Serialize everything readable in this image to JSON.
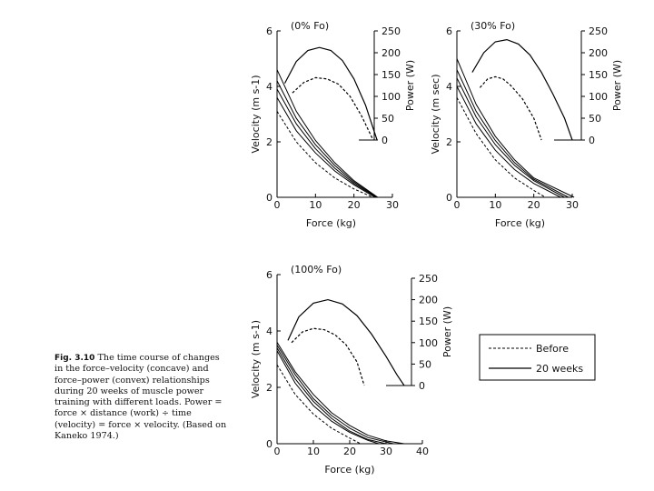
{
  "caption": {
    "label": "Fig. 3.10",
    "text": "The time course of changes in the force–velocity (concave) and force–power (convex) relationships during 20 weeks of muscle power training with different loads. Power = force × distance (work) ÷ time (velocity) = force × velocity. (Based on Kaneko 1974.)"
  },
  "legend": {
    "before": "Before",
    "after": "20 weeks"
  },
  "chart_data": [
    {
      "type": "line",
      "title": "(0% Fo)",
      "xlabel": "Force (kg)",
      "ylabel": "Velocity (m s-1)",
      "y2label": "Power (W)",
      "xlim": [
        0,
        30
      ],
      "xticks": [
        0,
        10,
        20,
        30
      ],
      "ylim": [
        0,
        6
      ],
      "yticks": [
        0,
        2,
        4,
        6
      ],
      "y2lim": [
        0,
        250
      ],
      "y2ticks": [
        0,
        50,
        100,
        150,
        200,
        250
      ],
      "velocity_series": [
        {
          "name": "Before",
          "dashed": true,
          "points": [
            [
              0,
              3.1
            ],
            [
              5,
              2.0
            ],
            [
              10,
              1.25
            ],
            [
              15,
              0.7
            ],
            [
              20,
              0.3
            ],
            [
              25,
              0.0
            ]
          ]
        },
        {
          "name": "Intermediate 1",
          "dashed": false,
          "points": [
            [
              0,
              3.6
            ],
            [
              5,
              2.4
            ],
            [
              10,
              1.6
            ],
            [
              15,
              0.95
            ],
            [
              20,
              0.45
            ],
            [
              25.5,
              0.0
            ]
          ]
        },
        {
          "name": "Intermediate 2",
          "dashed": false,
          "points": [
            [
              0,
              3.9
            ],
            [
              5,
              2.65
            ],
            [
              10,
              1.75
            ],
            [
              15,
              1.05
            ],
            [
              20,
              0.5
            ],
            [
              25.8,
              0.0
            ]
          ]
        },
        {
          "name": "Intermediate 3",
          "dashed": false,
          "points": [
            [
              0,
              4.2
            ],
            [
              5,
              2.85
            ],
            [
              10,
              1.9
            ],
            [
              15,
              1.15
            ],
            [
              20,
              0.55
            ],
            [
              26,
              0.0
            ]
          ]
        },
        {
          "name": "20 weeks",
          "dashed": false,
          "points": [
            [
              0,
              4.6
            ],
            [
              5,
              3.1
            ],
            [
              10,
              2.05
            ],
            [
              15,
              1.25
            ],
            [
              20,
              0.6
            ],
            [
              26.2,
              0.0
            ]
          ]
        }
      ],
      "power_series": [
        {
          "name": "Before",
          "dashed": true,
          "points": [
            [
              4,
              108
            ],
            [
              7,
              132
            ],
            [
              10,
              143
            ],
            [
              13,
              140
            ],
            [
              16,
              128
            ],
            [
              19,
              100
            ],
            [
              22,
              55
            ],
            [
              25,
              0
            ]
          ]
        },
        {
          "name": "20 weeks",
          "dashed": false,
          "points": [
            [
              2,
              130
            ],
            [
              5,
              180
            ],
            [
              8,
              205
            ],
            [
              11,
              212
            ],
            [
              14,
              205
            ],
            [
              17,
              182
            ],
            [
              20,
              140
            ],
            [
              23,
              80
            ],
            [
              26,
              0
            ]
          ]
        }
      ]
    },
    {
      "type": "line",
      "title": "(30% Fo)",
      "xlabel": "Force (kg)",
      "ylabel": "Velocity (m sec)",
      "y2label": "Power (W)",
      "xlim": [
        0,
        30
      ],
      "xticks": [
        0,
        10,
        20,
        30
      ],
      "ylim": [
        0,
        6
      ],
      "yticks": [
        0,
        2,
        4,
        6
      ],
      "y2lim": [
        0,
        250
      ],
      "y2ticks": [
        0,
        50,
        100,
        150,
        200,
        250
      ],
      "velocity_series": [
        {
          "name": "Before",
          "dashed": true,
          "points": [
            [
              0,
              3.6
            ],
            [
              5,
              2.3
            ],
            [
              10,
              1.35
            ],
            [
              15,
              0.7
            ],
            [
              20,
              0.25
            ],
            [
              23,
              0.0
            ]
          ]
        },
        {
          "name": "Intermediate 1",
          "dashed": false,
          "points": [
            [
              0,
              4.0
            ],
            [
              5,
              2.65
            ],
            [
              10,
              1.7
            ],
            [
              15,
              1.0
            ],
            [
              20,
              0.5
            ],
            [
              27,
              0.0
            ]
          ]
        },
        {
          "name": "Intermediate 2",
          "dashed": false,
          "points": [
            [
              0,
              4.3
            ],
            [
              5,
              2.9
            ],
            [
              10,
              1.9
            ],
            [
              15,
              1.15
            ],
            [
              20,
              0.6
            ],
            [
              28,
              0.0
            ]
          ]
        },
        {
          "name": "Intermediate 3",
          "dashed": false,
          "points": [
            [
              0,
              4.6
            ],
            [
              5,
              3.1
            ],
            [
              10,
              2.05
            ],
            [
              15,
              1.25
            ],
            [
              20,
              0.65
            ],
            [
              29,
              0.0
            ]
          ]
        },
        {
          "name": "20 weeks",
          "dashed": false,
          "points": [
            [
              0,
              5.0
            ],
            [
              5,
              3.35
            ],
            [
              10,
              2.2
            ],
            [
              15,
              1.35
            ],
            [
              20,
              0.7
            ],
            [
              30.5,
              0.0
            ]
          ]
        }
      ],
      "power_series": [
        {
          "name": "Before",
          "dashed": true,
          "points": [
            [
              6,
              120
            ],
            [
              8,
              140
            ],
            [
              10,
              145
            ],
            [
              12,
              140
            ],
            [
              14,
              125
            ],
            [
              17,
              95
            ],
            [
              20,
              50
            ],
            [
              22,
              0
            ]
          ]
        },
        {
          "name": "20 weeks",
          "dashed": false,
          "points": [
            [
              4,
              155
            ],
            [
              7,
              200
            ],
            [
              10,
              225
            ],
            [
              13,
              230
            ],
            [
              16,
              220
            ],
            [
              19,
              195
            ],
            [
              22,
              155
            ],
            [
              25,
              105
            ],
            [
              28,
              50
            ],
            [
              30,
              0
            ]
          ]
        }
      ]
    },
    {
      "type": "line",
      "title": "(100% Fo)",
      "xlabel": "Force (kg)",
      "ylabel": "Velocity (m s-1)",
      "y2label": "Power (W)",
      "xlim": [
        0,
        40
      ],
      "xticks": [
        0,
        10,
        20,
        30,
        40
      ],
      "ylim": [
        0,
        6
      ],
      "yticks": [
        0,
        2,
        4,
        6
      ],
      "y2lim": [
        0,
        250
      ],
      "y2ticks": [
        0,
        50,
        100,
        150,
        200,
        250
      ],
      "velocity_series": [
        {
          "name": "Before",
          "dashed": true,
          "points": [
            [
              0,
              2.8
            ],
            [
              5,
              1.75
            ],
            [
              10,
              1.05
            ],
            [
              15,
              0.55
            ],
            [
              20,
              0.2
            ],
            [
              23,
              0.0
            ]
          ]
        },
        {
          "name": "Intermediate 1",
          "dashed": false,
          "points": [
            [
              0,
              3.3
            ],
            [
              5,
              2.15
            ],
            [
              10,
              1.35
            ],
            [
              15,
              0.8
            ],
            [
              20,
              0.4
            ],
            [
              25,
              0.12
            ],
            [
              28,
              0.0
            ]
          ]
        },
        {
          "name": "Intermediate 2",
          "dashed": false,
          "points": [
            [
              0,
              3.4
            ],
            [
              5,
              2.3
            ],
            [
              10,
              1.5
            ],
            [
              15,
              0.9
            ],
            [
              20,
              0.45
            ],
            [
              25,
              0.15
            ],
            [
              30,
              0.0
            ]
          ]
        },
        {
          "name": "Intermediate 3",
          "dashed": false,
          "points": [
            [
              0,
              3.5
            ],
            [
              5,
              2.45
            ],
            [
              10,
              1.6
            ],
            [
              15,
              1.0
            ],
            [
              20,
              0.55
            ],
            [
              25,
              0.22
            ],
            [
              32,
              0.0
            ]
          ]
        },
        {
          "name": "20 weeks",
          "dashed": false,
          "points": [
            [
              0,
              3.6
            ],
            [
              5,
              2.55
            ],
            [
              10,
              1.75
            ],
            [
              15,
              1.1
            ],
            [
              20,
              0.65
            ],
            [
              25,
              0.3
            ],
            [
              30,
              0.1
            ],
            [
              35,
              0.0
            ]
          ]
        }
      ],
      "power_series": [
        {
          "name": "Before",
          "dashed": true,
          "points": [
            [
              4,
              100
            ],
            [
              7,
              125
            ],
            [
              10,
              133
            ],
            [
              13,
              130
            ],
            [
              16,
              118
            ],
            [
              19,
              95
            ],
            [
              22,
              55
            ],
            [
              24,
              0
            ]
          ]
        },
        {
          "name": "20 weeks",
          "dashed": false,
          "points": [
            [
              3,
              105
            ],
            [
              6,
              160
            ],
            [
              10,
              192
            ],
            [
              14,
              200
            ],
            [
              18,
              190
            ],
            [
              22,
              163
            ],
            [
              26,
              120
            ],
            [
              30,
              68
            ],
            [
              33,
              25
            ],
            [
              35,
              0
            ]
          ]
        }
      ]
    }
  ]
}
